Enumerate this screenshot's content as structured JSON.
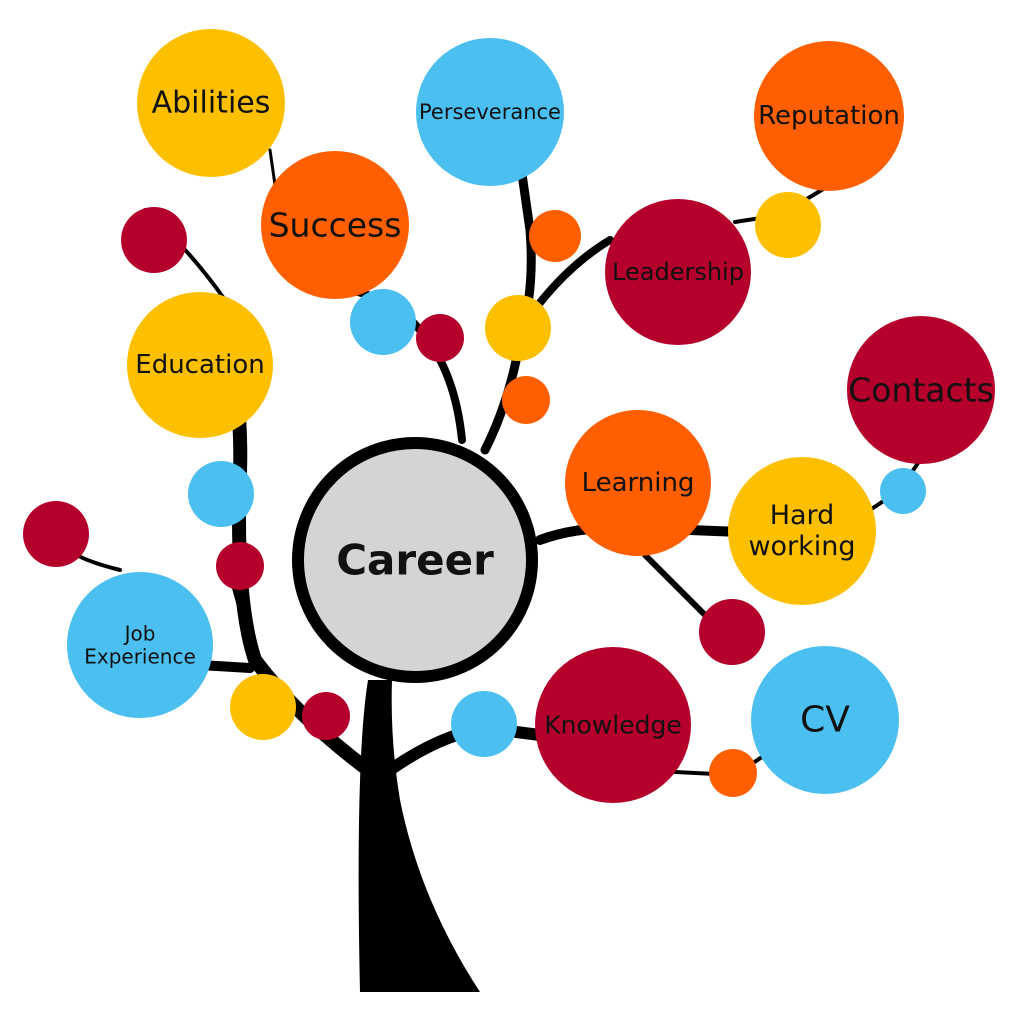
{
  "colors": {
    "yellow": "#FDC000",
    "orange": "#FF5F00",
    "red": "#B5002B",
    "blue": "#4BBFF0",
    "center": "#D4D4D4",
    "trunk": "#000000"
  },
  "center": {
    "label": "Career"
  },
  "nodes": [
    {
      "id": "abilities",
      "lines": [
        "Abilities"
      ],
      "color": "yellow"
    },
    {
      "id": "perseverance",
      "lines": [
        "Perseverance"
      ],
      "color": "blue"
    },
    {
      "id": "reputation",
      "lines": [
        "Reputation"
      ],
      "color": "orange"
    },
    {
      "id": "success",
      "lines": [
        "Success"
      ],
      "color": "orange"
    },
    {
      "id": "leadership",
      "lines": [
        "Leadership"
      ],
      "color": "red"
    },
    {
      "id": "education",
      "lines": [
        "Education"
      ],
      "color": "yellow"
    },
    {
      "id": "contacts",
      "lines": [
        "Contacts"
      ],
      "color": "red"
    },
    {
      "id": "learning",
      "lines": [
        "Learning"
      ],
      "color": "orange"
    },
    {
      "id": "hard-working",
      "lines": [
        "Hard",
        "working"
      ],
      "color": "yellow"
    },
    {
      "id": "job-experience",
      "lines": [
        "Job",
        "Experience"
      ],
      "color": "blue"
    },
    {
      "id": "cv",
      "lines": [
        "CV"
      ],
      "color": "blue"
    },
    {
      "id": "knowledge",
      "lines": [
        "Knowledge"
      ],
      "color": "red"
    }
  ]
}
